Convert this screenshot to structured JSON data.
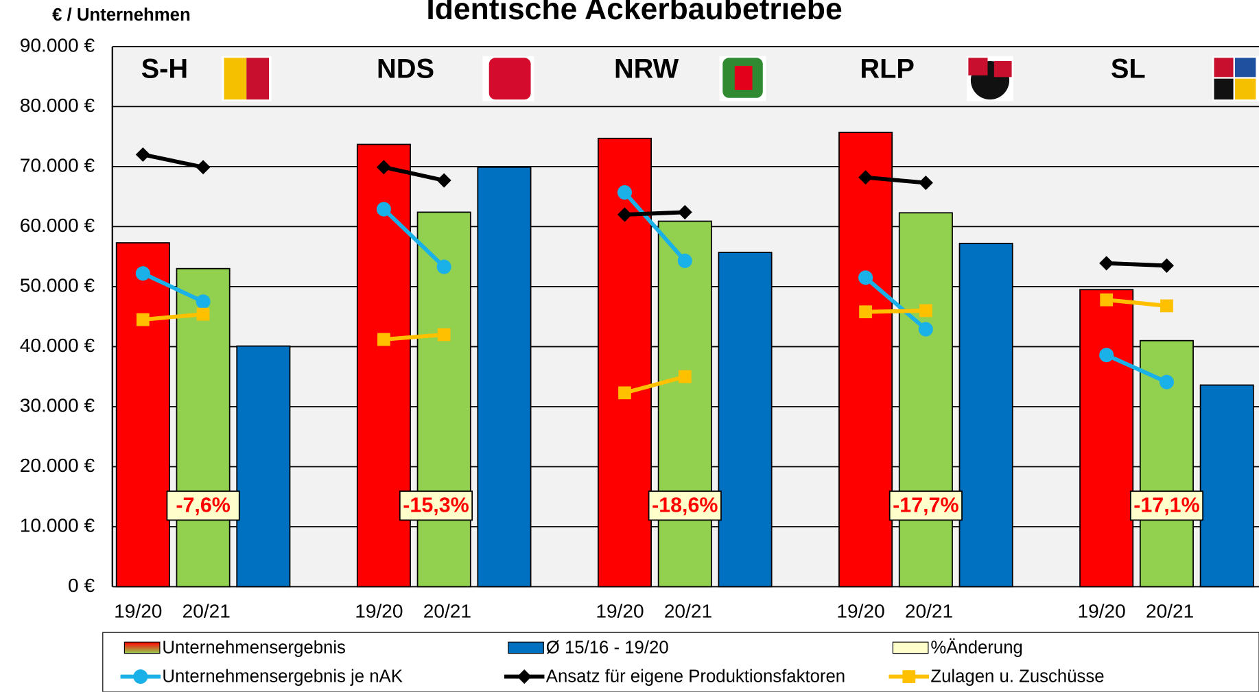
{
  "chart_data": {
    "type": "bar",
    "title": "Identische Ackerbaubetriebe",
    "y_label": "€ / Unternehmen",
    "groups": [
      "S-H",
      "NDS",
      "NRW",
      "RLP",
      "SL"
    ],
    "periods": [
      "19/20",
      "20/21"
    ],
    "ylim": [
      0,
      90000
    ],
    "yticks": [
      {
        "value": 0,
        "label": "0 €"
      },
      {
        "value": 10000,
        "label": "10.000 €"
      },
      {
        "value": 20000,
        "label": "20.000 €"
      },
      {
        "value": 30000,
        "label": "30.000 €"
      },
      {
        "value": 40000,
        "label": "40.000 €"
      },
      {
        "value": 50000,
        "label": "50.000 €"
      },
      {
        "value": 60000,
        "label": "60.000 €"
      },
      {
        "value": 70000,
        "label": "70.000 €"
      },
      {
        "value": 80000,
        "label": "80.000 €"
      },
      {
        "value": 90000,
        "label": "90.000 €"
      }
    ],
    "grid": true,
    "series": [
      {
        "name": "Unternehmensergebnis",
        "colors": [
          "#ff0000",
          "#92d050"
        ],
        "values": [
          [
            57300,
            53000
          ],
          [
            73700,
            62400
          ],
          [
            74700,
            60900
          ],
          [
            75700,
            62300
          ],
          [
            49500,
            41000
          ]
        ]
      },
      {
        "name": "Ø 15/16 - 19/20",
        "color": "#0070c0",
        "values": [
          40100,
          69900,
          55700,
          57200,
          33600
        ]
      },
      {
        "name": "%Änderung",
        "color": "#ffffcc",
        "labels": [
          "-7,6%",
          "-15,3%",
          "-18,6%",
          "-17,7%",
          "-17,1%"
        ]
      },
      {
        "name": "Unternehmensergebnis je nAK",
        "color": "#1ab0e8",
        "marker": "circle",
        "values": [
          [
            52200,
            47500
          ],
          [
            62900,
            53300
          ],
          [
            65700,
            54300
          ],
          [
            51500,
            42900
          ],
          [
            38600,
            34100
          ]
        ]
      },
      {
        "name": "Ansatz für eigene Produktionsfaktoren",
        "color": "#000000",
        "marker": "diamond",
        "values": [
          [
            72000,
            69900
          ],
          [
            69900,
            67700
          ],
          [
            62000,
            62400
          ],
          [
            68200,
            67300
          ],
          [
            53900,
            53500
          ]
        ]
      },
      {
        "name": "Zulagen u. Zuschüsse",
        "color": "#ffc000",
        "marker": "square",
        "values": [
          [
            44500,
            45400
          ],
          [
            41200,
            42000
          ],
          [
            32300,
            35000
          ],
          [
            45800,
            46000
          ],
          [
            47800,
            46800
          ]
        ]
      }
    ]
  }
}
